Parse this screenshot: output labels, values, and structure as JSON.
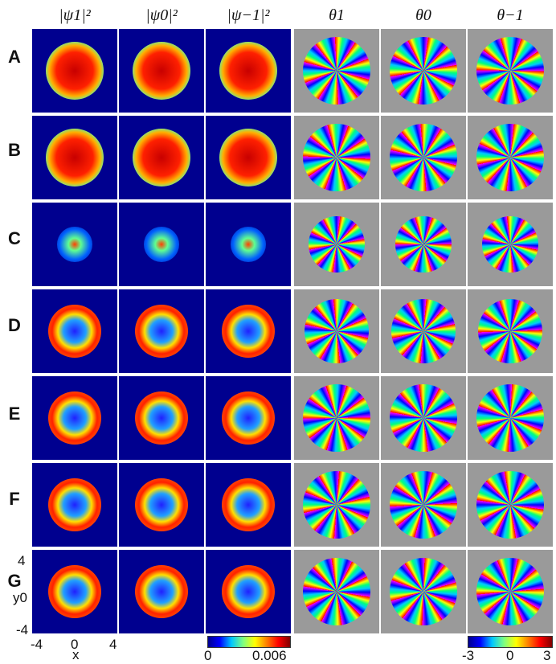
{
  "headers": {
    "psi1": "|ψ1|²",
    "psi0": "|ψ0|²",
    "psim1": "|ψ−1|²",
    "theta1": "θ1",
    "theta0": "θ0",
    "thetam1": "θ−1"
  },
  "rows": [
    "A",
    "B",
    "C",
    "D",
    "E",
    "F",
    "G"
  ],
  "axes": {
    "y_top": "4",
    "y_label": "y0",
    "y_bottom": "-4",
    "x_left": "-4",
    "x_mid": "0",
    "x_right": "4",
    "x_label": "x"
  },
  "density_colorbar": {
    "min": "0",
    "max": "0.006"
  },
  "phase_colorbar": {
    "min": "-3",
    "mid": "0",
    "max": "3"
  },
  "colors": {
    "density_bg": "#00008f",
    "phase_bg": "#9a9a9a"
  }
}
